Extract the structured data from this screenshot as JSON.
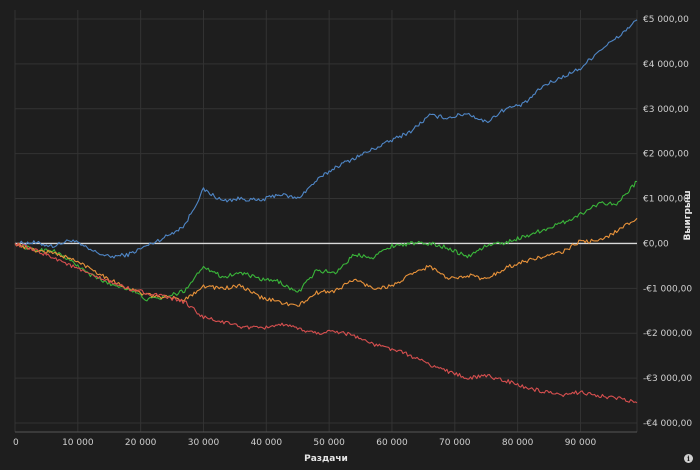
{
  "chart_data": {
    "type": "line",
    "title": "",
    "xlabel": "Раздачи",
    "ylabel": "Выигрыш",
    "xlim": [
      0,
      99000
    ],
    "ylim": [
      -4200,
      5200
    ],
    "x_ticks": [
      0,
      10000,
      20000,
      30000,
      40000,
      50000,
      60000,
      70000,
      80000,
      90000
    ],
    "x_tick_labels": [
      "0",
      "10 000",
      "20 000",
      "30 000",
      "40 000",
      "50 000",
      "60 000",
      "70 000",
      "80 000",
      "90 000"
    ],
    "y_ticks": [
      5000,
      4000,
      3000,
      2000,
      1000,
      0,
      -1000,
      -2000,
      -3000,
      -4000
    ],
    "y_tick_labels": [
      "€5 000,00",
      "€4 000,00",
      "€3 000,00",
      "€2 000,00",
      "€1 000,00",
      "€0,00",
      "-€1 000,00",
      "-€2 000,00",
      "-€3 000,00",
      "-€4 000,00"
    ],
    "grid": true,
    "zero_line": true,
    "series": [
      {
        "color": "#4f86c6",
        "x": [
          0,
          3000,
          6000,
          9000,
          12000,
          15000,
          18000,
          21000,
          24000,
          27000,
          30000,
          33000,
          36000,
          39000,
          42000,
          45000,
          48000,
          51000,
          54000,
          57000,
          60000,
          63000,
          66000,
          69000,
          72000,
          75000,
          78000,
          81000,
          84000,
          87000,
          90000,
          93000,
          96000,
          99000
        ],
        "y": [
          0,
          20,
          -60,
          80,
          -150,
          -300,
          -250,
          -50,
          150,
          400,
          1200,
          950,
          1000,
          950,
          1100,
          1000,
          1400,
          1700,
          1900,
          2100,
          2300,
          2500,
          2850,
          2800,
          2900,
          2700,
          3000,
          3100,
          3500,
          3700,
          3900,
          4300,
          4600,
          4980
        ]
      },
      {
        "color": "#3ab53a",
        "x": [
          0,
          3000,
          6000,
          9000,
          12000,
          15000,
          18000,
          21000,
          24000,
          27000,
          30000,
          33000,
          36000,
          39000,
          42000,
          45000,
          48000,
          51000,
          54000,
          57000,
          60000,
          63000,
          66000,
          69000,
          72000,
          75000,
          78000,
          81000,
          84000,
          87000,
          90000,
          93000,
          96000,
          99000
        ],
        "y": [
          0,
          -150,
          -150,
          -400,
          -700,
          -900,
          -1000,
          -1250,
          -1200,
          -1050,
          -500,
          -750,
          -650,
          -800,
          -850,
          -1100,
          -600,
          -650,
          -250,
          -300,
          -50,
          0,
          0,
          -100,
          -300,
          -50,
          20,
          150,
          300,
          450,
          650,
          900,
          900,
          1380
        ]
      },
      {
        "color": "#e8923a",
        "x": [
          0,
          3000,
          6000,
          9000,
          12000,
          15000,
          18000,
          21000,
          24000,
          27000,
          30000,
          33000,
          36000,
          39000,
          42000,
          45000,
          48000,
          51000,
          54000,
          57000,
          60000,
          63000,
          66000,
          69000,
          72000,
          75000,
          78000,
          81000,
          84000,
          87000,
          90000,
          93000,
          96000,
          99000
        ],
        "y": [
          0,
          -150,
          -200,
          -350,
          -550,
          -800,
          -1000,
          -1150,
          -1200,
          -1250,
          -950,
          -1000,
          -950,
          -1200,
          -1300,
          -1400,
          -1100,
          -1050,
          -800,
          -1000,
          -950,
          -700,
          -500,
          -800,
          -700,
          -800,
          -550,
          -400,
          -300,
          -200,
          50,
          50,
          300,
          560
        ]
      },
      {
        "color": "#d64f4f",
        "x": [
          0,
          3000,
          6000,
          9000,
          12000,
          15000,
          18000,
          21000,
          24000,
          27000,
          30000,
          33000,
          36000,
          39000,
          42000,
          45000,
          48000,
          51000,
          54000,
          57000,
          60000,
          63000,
          66000,
          69000,
          72000,
          75000,
          78000,
          81000,
          84000,
          87000,
          90000,
          93000,
          96000,
          99000
        ],
        "y": [
          0,
          -150,
          -300,
          -500,
          -700,
          -850,
          -1000,
          -1100,
          -1200,
          -1300,
          -1650,
          -1750,
          -1850,
          -1900,
          -1800,
          -1900,
          -2000,
          -1950,
          -2050,
          -2250,
          -2350,
          -2500,
          -2700,
          -2850,
          -3000,
          -2950,
          -3050,
          -3200,
          -3300,
          -3400,
          -3300,
          -3400,
          -3450,
          -3550
        ]
      }
    ]
  }
}
